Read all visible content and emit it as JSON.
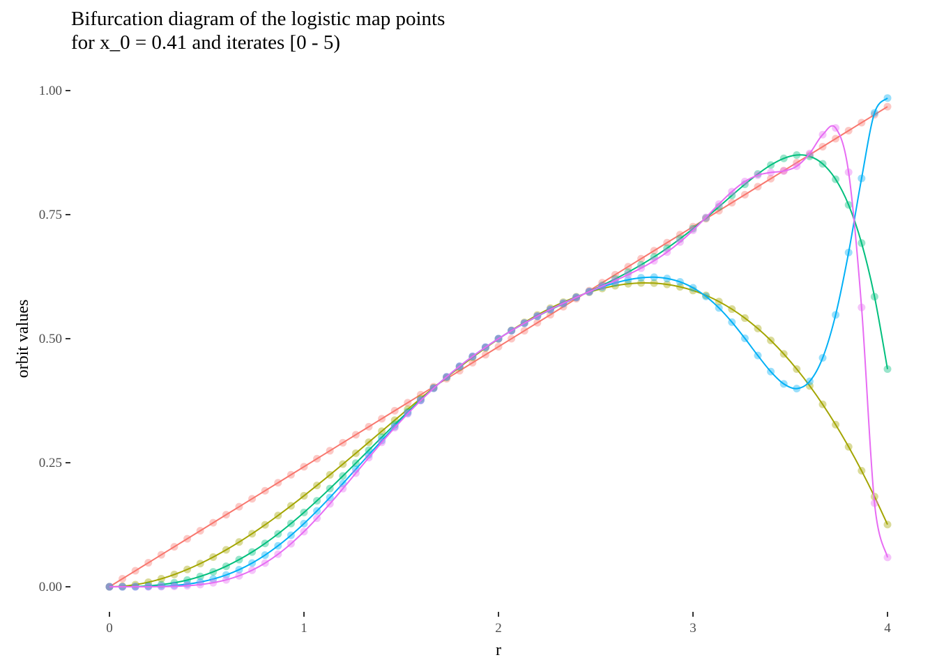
{
  "chart_data": {
    "type": "line",
    "title": "Bifurcation diagram of the logistic map points",
    "subtitle": "for x_0 = 0.41 and iterates [0 - 5)",
    "xlabel": "r",
    "ylabel": "orbit values",
    "xlim": [
      0,
      4
    ],
    "ylim": [
      0,
      1
    ],
    "x_ticks": [
      "0",
      "1",
      "2",
      "3",
      "4"
    ],
    "y_ticks": [
      "0.00",
      "0.25",
      "0.50",
      "0.75",
      "1.00"
    ],
    "grid": false,
    "legend": "none",
    "x0": 0.41,
    "iterates": [
      0,
      1,
      2,
      3,
      4
    ],
    "r_values": [
      0,
      0.0667,
      0.1333,
      0.2,
      0.2667,
      0.3333,
      0.4,
      0.4667,
      0.5333,
      0.6,
      0.6667,
      0.7333,
      0.8,
      0.8667,
      0.9333,
      1.0,
      1.0667,
      1.1333,
      1.2,
      1.2667,
      1.3333,
      1.4,
      1.4667,
      1.5333,
      1.6,
      1.6667,
      1.7333,
      1.8,
      1.8667,
      1.9333,
      2.0,
      2.0667,
      2.1333,
      2.2,
      2.2667,
      2.3333,
      2.4,
      2.4667,
      2.5333,
      2.6,
      2.6667,
      2.7333,
      2.8,
      2.8667,
      2.9333,
      3.0,
      3.0667,
      3.1333,
      3.2,
      3.2667,
      3.3333,
      3.4,
      3.4667,
      3.5333,
      3.6,
      3.6667,
      3.7333,
      3.8,
      3.8667,
      3.9333,
      4.0
    ],
    "series_colors": [
      "#F8766D",
      "#A3A500",
      "#00BF7D",
      "#00B0F6",
      "#E76BF3"
    ],
    "point_alpha": 0.4,
    "line_width": 2
  }
}
